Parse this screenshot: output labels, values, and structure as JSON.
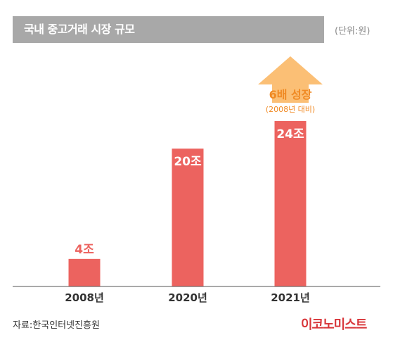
{
  "header": {
    "title": "국내 중고거래 시장 규모",
    "unit": "(단위:원)"
  },
  "chart_data": {
    "type": "bar",
    "categories": [
      "2008년",
      "2020년",
      "2021년"
    ],
    "values": [
      4,
      20,
      24
    ],
    "value_labels": [
      "4조",
      "20조",
      "24조"
    ],
    "title": "국내 중고거래 시장 규모",
    "xlabel": "",
    "ylabel": "",
    "ylim": [
      0,
      24
    ],
    "grid": false,
    "annotation": {
      "text": "6배 성장",
      "subtext": "(2008년 대비)",
      "target_category": "2021년"
    }
  },
  "colors": {
    "bar": "#ec635f",
    "arrow": "#fbbf75",
    "annotation_text": "#f08a24",
    "axis": "#555555",
    "title_bar": "#a8a8a8",
    "logo": "#d8363a"
  },
  "footer": {
    "source": "자료:한국인터넷진흥원",
    "logo": "이코노미스트"
  }
}
